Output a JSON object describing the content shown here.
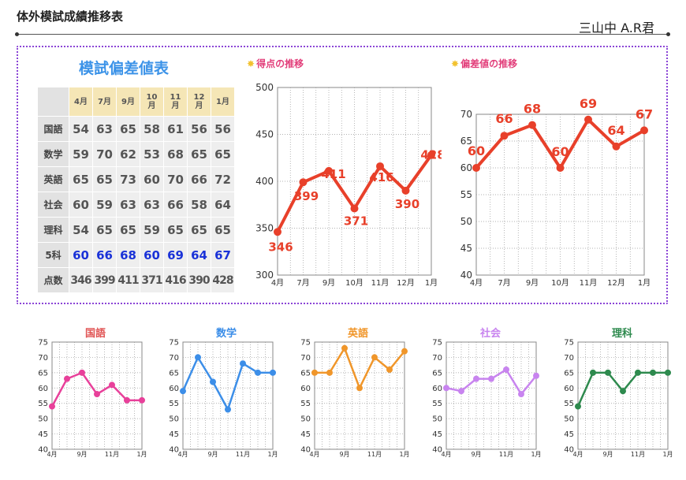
{
  "header": {
    "title": "体外模試成績推移表",
    "student": "三山中 A.R君"
  },
  "table": {
    "title": "模試偏差値表",
    "months": [
      "4月",
      "7月",
      "9月",
      "10月",
      "11月",
      "12月",
      "1月"
    ],
    "rows": [
      {
        "label": "国語",
        "values": [
          54,
          63,
          65,
          58,
          61,
          56,
          56
        ]
      },
      {
        "label": "数学",
        "values": [
          59,
          70,
          62,
          53,
          68,
          65,
          65
        ]
      },
      {
        "label": "英語",
        "values": [
          65,
          65,
          73,
          60,
          70,
          66,
          72
        ]
      },
      {
        "label": "社会",
        "values": [
          60,
          59,
          63,
          63,
          66,
          58,
          64
        ]
      },
      {
        "label": "理科",
        "values": [
          54,
          65,
          65,
          59,
          65,
          65,
          65
        ]
      },
      {
        "label": "5科",
        "values": [
          60,
          66,
          68,
          60,
          69,
          64,
          67
        ]
      },
      {
        "label": "点数",
        "values": [
          346,
          399,
          411,
          371,
          416,
          390,
          428
        ]
      }
    ]
  },
  "chart_data": [
    {
      "type": "line",
      "title": "得点の推移",
      "categories": [
        "4月",
        "7月",
        "9月",
        "10月",
        "11月",
        "12月",
        "1月"
      ],
      "series": [
        {
          "values": [
            346,
            399,
            411,
            371,
            416,
            390,
            428
          ]
        }
      ],
      "ylim": [
        300,
        500
      ],
      "yticks": [
        300,
        350,
        400,
        450,
        500
      ],
      "grid": true,
      "data_labels": true,
      "color": "#e8402a"
    },
    {
      "type": "line",
      "title": "偏差値の推移",
      "categories": [
        "4月",
        "7月",
        "9月",
        "10月",
        "11月",
        "12月",
        "1月"
      ],
      "series": [
        {
          "values": [
            60,
            66,
            68,
            60,
            69,
            64,
            67
          ]
        }
      ],
      "ylim": [
        40,
        70
      ],
      "yticks": [
        40,
        45,
        50,
        55,
        60,
        65,
        70
      ],
      "grid": true,
      "data_labels": true,
      "color": "#e8402a"
    },
    {
      "type": "line",
      "title": "国語",
      "categories": [
        "4月",
        "7月",
        "9月",
        "10月",
        "11月",
        "12月",
        "1月"
      ],
      "series": [
        {
          "values": [
            54,
            63,
            65,
            58,
            61,
            56,
            56
          ]
        }
      ],
      "ylim": [
        40,
        75
      ],
      "grid": true,
      "color": "#e8409a",
      "title_color": "#e05454"
    },
    {
      "type": "line",
      "title": "数学",
      "categories": [
        "4月",
        "7月",
        "9月",
        "10月",
        "11月",
        "12月",
        "1月"
      ],
      "series": [
        {
          "values": [
            59,
            70,
            62,
            53,
            68,
            65,
            65
          ]
        }
      ],
      "ylim": [
        40,
        75
      ],
      "grid": true,
      "color": "#3c8ee8",
      "title_color": "#3c8ee8"
    },
    {
      "type": "line",
      "title": "英語",
      "categories": [
        "4月",
        "7月",
        "9月",
        "10月",
        "11月",
        "12月",
        "1月"
      ],
      "series": [
        {
          "values": [
            65,
            65,
            73,
            60,
            70,
            66,
            72
          ]
        }
      ],
      "ylim": [
        40,
        75
      ],
      "grid": true,
      "color": "#f0962a",
      "title_color": "#f0962a"
    },
    {
      "type": "line",
      "title": "社会",
      "categories": [
        "4月",
        "7月",
        "9月",
        "10月",
        "11月",
        "12月",
        "1月"
      ],
      "series": [
        {
          "values": [
            60,
            59,
            63,
            63,
            66,
            58,
            64
          ]
        }
      ],
      "ylim": [
        40,
        75
      ],
      "grid": true,
      "color": "#c884ef",
      "title_color": "#c884ef"
    },
    {
      "type": "line",
      "title": "理科",
      "categories": [
        "4月",
        "7月",
        "9月",
        "10月",
        "11月",
        "12月",
        "1月"
      ],
      "series": [
        {
          "values": [
            54,
            65,
            65,
            59,
            65,
            65,
            65
          ]
        }
      ],
      "ylim": [
        40,
        75
      ],
      "grid": true,
      "color": "#2e8a4e",
      "title_color": "#2e8a4e"
    }
  ]
}
